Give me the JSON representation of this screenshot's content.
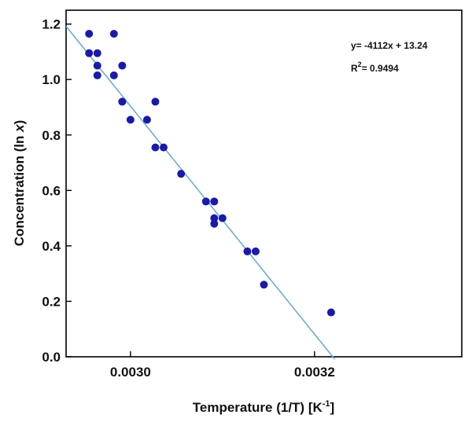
{
  "chart_data": {
    "type": "scatter",
    "title": "",
    "xlabel": "Temperature (1/T) [K",
    "xlabel_sup": "-1",
    "xlabel_end": "]",
    "ylabel_prefix": "Concentration (ln ",
    "ylabel_var": "x",
    "ylabel_suffix": ")",
    "xlim": [
      0.00293,
      0.00336
    ],
    "ylim": [
      0.0,
      1.25
    ],
    "x_ticks": [
      0.003,
      0.0032
    ],
    "x_tick_labels": [
      "0.0030",
      "0.0032"
    ],
    "y_ticks": [
      0.0,
      0.2,
      0.4,
      0.6,
      0.8,
      1.0,
      1.2
    ],
    "y_tick_labels": [
      "0.0",
      "0.2",
      "0.4",
      "0.6",
      "0.8",
      "1.0",
      "1.2"
    ],
    "grid": false,
    "point_color": "#1a1aaa",
    "line_color": "#6aaed0",
    "series": [
      {
        "points": [
          {
            "x": 0.002955,
            "y": 1.165
          },
          {
            "x": 0.002955,
            "y": 1.095
          },
          {
            "x": 0.002964,
            "y": 1.095
          },
          {
            "x": 0.002964,
            "y": 1.05
          },
          {
            "x": 0.002964,
            "y": 1.015
          },
          {
            "x": 0.002982,
            "y": 1.165
          },
          {
            "x": 0.002982,
            "y": 1.015
          },
          {
            "x": 0.002991,
            "y": 1.05
          },
          {
            "x": 0.002991,
            "y": 0.92
          },
          {
            "x": 0.003,
            "y": 0.855
          },
          {
            "x": 0.003018,
            "y": 0.855
          },
          {
            "x": 0.003027,
            "y": 0.92
          },
          {
            "x": 0.003027,
            "y": 0.755
          },
          {
            "x": 0.003036,
            "y": 0.755
          },
          {
            "x": 0.003055,
            "y": 0.66
          },
          {
            "x": 0.003082,
            "y": 0.56
          },
          {
            "x": 0.003091,
            "y": 0.56
          },
          {
            "x": 0.003091,
            "y": 0.5
          },
          {
            "x": 0.003091,
            "y": 0.48
          },
          {
            "x": 0.0031,
            "y": 0.5
          },
          {
            "x": 0.003127,
            "y": 0.38
          },
          {
            "x": 0.003136,
            "y": 0.38
          },
          {
            "x": 0.003145,
            "y": 0.26
          },
          {
            "x": 0.003218,
            "y": 0.16
          }
        ]
      }
    ],
    "fit": {
      "x_start": 0.00293,
      "x_end": 0.003222,
      "equation": "y= -4112x + 13.24",
      "r2_prefix": "R",
      "r2_sup": "2",
      "r2_value": "= 0.9494"
    }
  }
}
